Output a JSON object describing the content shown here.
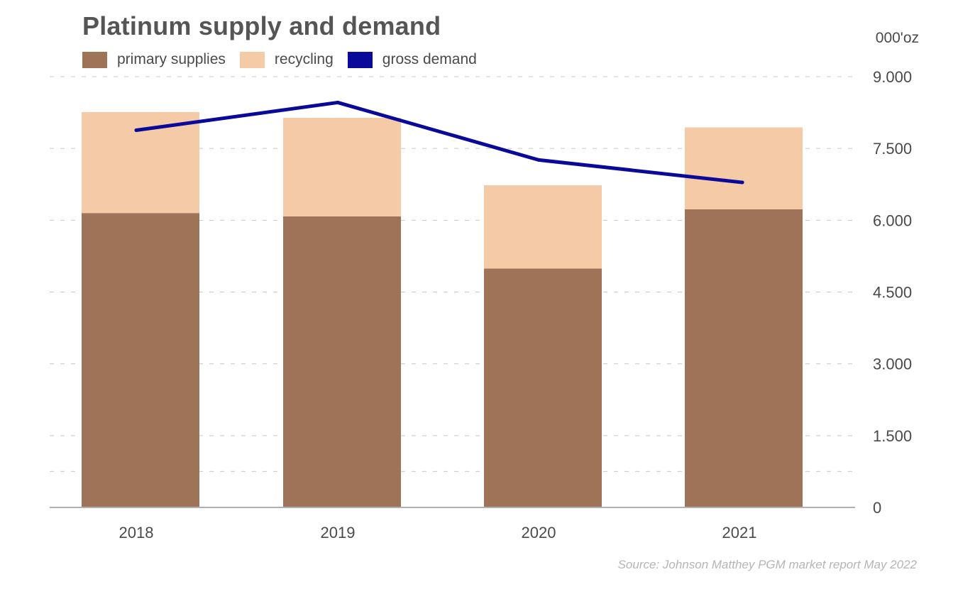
{
  "title": "Platinum supply and demand",
  "unit_label": "000'oz",
  "source": "Source: Johnson Matthey PGM market report May 2022",
  "legend": [
    {
      "label": "primary supplies",
      "color": "#9e7357"
    },
    {
      "label": "recycling",
      "color": "#f5caa7"
    },
    {
      "label": "gross demand",
      "color": "#0a0a9a"
    }
  ],
  "chart_data": {
    "type": "bar",
    "stacked": true,
    "title": "Platinum supply and demand",
    "ylabel": "000'oz",
    "xlabel": "",
    "categories": [
      "2018",
      "2019",
      "2020",
      "2021"
    ],
    "series": [
      {
        "name": "primary supplies",
        "type": "bar",
        "values": [
          6150,
          6080,
          4990,
          6230
        ]
      },
      {
        "name": "recycling",
        "type": "bar",
        "values": [
          2110,
          2060,
          1740,
          1710
        ]
      },
      {
        "name": "gross demand",
        "type": "line",
        "values": [
          7880,
          8460,
          7260,
          6790
        ]
      }
    ],
    "ylim": [
      0,
      9000
    ],
    "yticks": [
      0,
      1500,
      3000,
      4500,
      6000,
      7500,
      9000
    ],
    "ytick_labels": [
      "0",
      "1.500",
      "3.000",
      "4.500",
      "6.000",
      "7.500",
      "9.000"
    ],
    "grid": true,
    "legend_position": "top-left"
  }
}
